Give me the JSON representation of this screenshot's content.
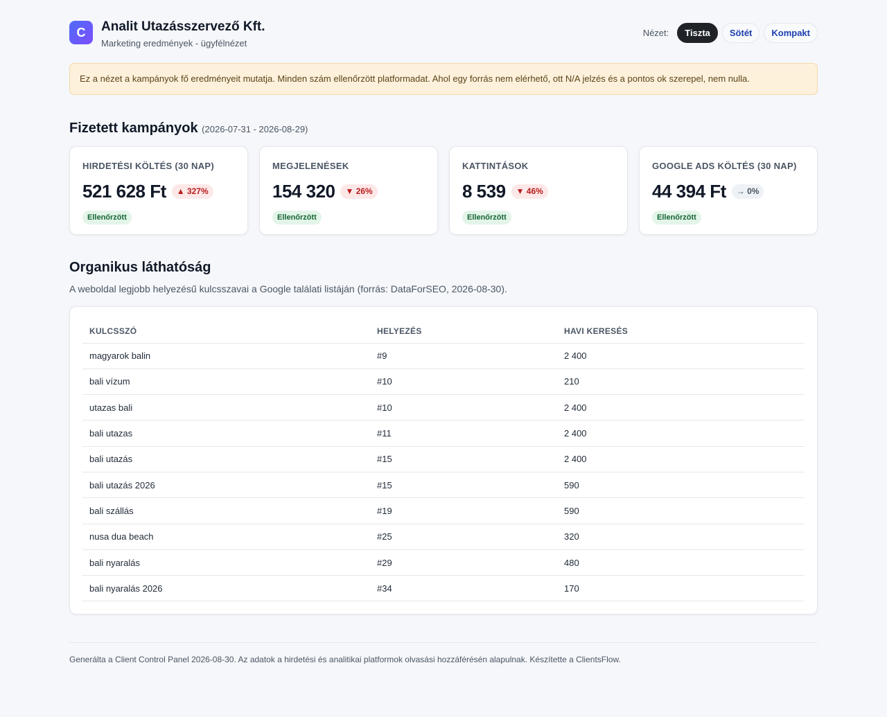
{
  "header": {
    "logo_letter": "C",
    "title": "Analit Utazásszervező Kft.",
    "subtitle": "Marketing eredmények - ügyfélnézet",
    "view_label": "Nézet:",
    "views": [
      "Tiszta",
      "Sötét",
      "Kompakt"
    ],
    "active_view": "Tiszta"
  },
  "notice": "Ez a nézet a kampányok fő eredményeit mutatja. Minden szám ellenőrzött platformadat. Ahol egy forrás nem elérhető, ott N/A jelzés és a pontos ok szerepel, nem nulla.",
  "paid": {
    "title": "Fizetett kampányok",
    "range": "(2026-07-31 - 2026-08-29)",
    "kpis": [
      {
        "label": "HIRDETÉSI KÖLTÉS (30 NAP)",
        "value": "521 628 Ft",
        "delta": "▲ 327%",
        "trend": "up",
        "badge": "Ellenőrzött"
      },
      {
        "label": "MEGJELENÉSEK",
        "value": "154 320",
        "delta": "▼ 26%",
        "trend": "down",
        "badge": "Ellenőrzött"
      },
      {
        "label": "KATTINTÁSOK",
        "value": "8 539",
        "delta": "▼ 46%",
        "trend": "down",
        "badge": "Ellenőrzött"
      },
      {
        "label": "GOOGLE ADS KÖLTÉS (30 NAP)",
        "value": "44 394 Ft",
        "delta": "→ 0%",
        "trend": "flat",
        "badge": "Ellenőrzött"
      }
    ]
  },
  "organic": {
    "title": "Organikus láthatóság",
    "description": "A weboldal legjobb helyezésű kulcsszavai a Google találati listáján (forrás: DataForSEO, 2026-08-30).",
    "columns": [
      "KULCSSZÓ",
      "HELYEZÉS",
      "HAVI KERESÉS"
    ],
    "rows": [
      [
        "magyarok balin",
        "#9",
        "2 400"
      ],
      [
        "bali vízum",
        "#10",
        "210"
      ],
      [
        "utazas bali",
        "#10",
        "2 400"
      ],
      [
        "bali utazas",
        "#11",
        "2 400"
      ],
      [
        "bali utazás",
        "#15",
        "2 400"
      ],
      [
        "bali utazás 2026",
        "#15",
        "590"
      ],
      [
        "bali szállás",
        "#19",
        "590"
      ],
      [
        "nusa dua beach",
        "#25",
        "320"
      ],
      [
        "bali nyaralás",
        "#29",
        "480"
      ],
      [
        "bali nyaralás 2026",
        "#34",
        "170"
      ]
    ]
  },
  "footer": "Generálta a Client Control Panel 2026-08-30. Az adatok a hirdetési és analitikai platformok olvasási hozzáférésén alapulnak. Készítette a ClientsFlow."
}
